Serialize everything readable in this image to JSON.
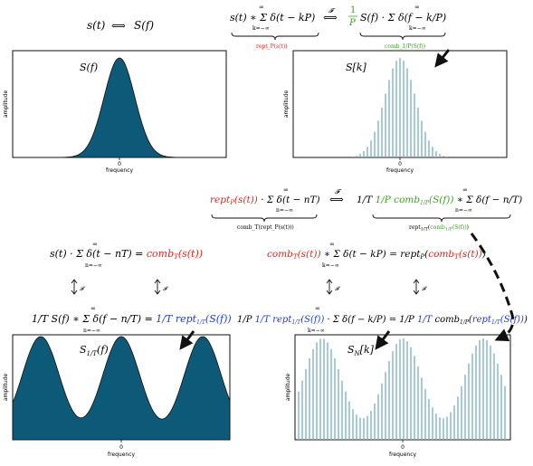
{
  "colors": {
    "fill": "#0d5a78",
    "stem": "#7fb4c8",
    "red": "#e0251b",
    "green": "#3aa01e",
    "blue": "#1f3bd6",
    "black": "#111111"
  },
  "top_left": {
    "eq_s": "s(t)",
    "arrow": "⟺",
    "eq_S": "S(f)"
  },
  "top_right": {
    "eq_left": "s(t) ∗ Σ δ(t − kP)",
    "sum_limits": {
      "top": "∞",
      "bottom": "k=−∞"
    },
    "label_under_left": "rept_P(s(t))",
    "transform": "𝓕",
    "arrow": "⟺",
    "frac_1": "1",
    "frac_P": "P",
    "eq_right": "S(f) · Σ δ(f − k/P)",
    "label_under_right": "comb_1/P(S(f))"
  },
  "middle_right": {
    "eq_left": "rept_P(s(t)) · Σ δ(t − nT)",
    "sum_limits": {
      "top": "∞",
      "bottom": "n=−∞"
    },
    "label_under_left": "comb_T(rept_P(s(t)))",
    "transform": "𝓕",
    "arrow": "⟺",
    "eq_right": "1/T 1/P comb_1/P(S(f)) ∗ Σ δ(f − n/T)",
    "label_under_right": "rept_1/T(comb_1/P(S(f)))"
  },
  "middle_left": {
    "eq": "s(t) · Σ δ(t − nT) = comb_T(s(t))",
    "sum_limits": {
      "top": "∞",
      "bottom": "n=−∞"
    },
    "transform": "𝓕",
    "eq_bottom": "1/T S(f) ∗ Σ δ(f − n/T) = 1/T rept_1/T(S(f))"
  },
  "middle_mid": {
    "eq": "comb_T(s(t)) ∗ Σ δ(t − kP) = rept_P(comb_T(s(t)))",
    "sum_limits": {
      "top": "∞",
      "bottom": "k=−∞"
    },
    "transform": "𝓕",
    "eq_bottom": "1/P 1/T rept_1/T(S(f)) · Σ δ(f − k/P) = 1/P 1/T comb_1/P(rept_1/T(S(f)))"
  },
  "plots": [
    {
      "label": "S(f)",
      "ylabel": "amplitude",
      "xlabel": "frequency",
      "xtick": "0",
      "kind": "gaussian-fill"
    },
    {
      "label": "S[k]",
      "ylabel": "amplitude",
      "xlabel": "frequency",
      "xtick": "0",
      "kind": "gaussian-stem"
    },
    {
      "label": "S_1/T(f)",
      "ylabel": "amplitude",
      "xlabel": "frequency",
      "xtick": "0",
      "kind": "periodic-fill"
    },
    {
      "label": "S_N[k]",
      "ylabel": "amplitude",
      "xlabel": "frequency",
      "xtick": "0",
      "kind": "periodic-stem"
    }
  ]
}
